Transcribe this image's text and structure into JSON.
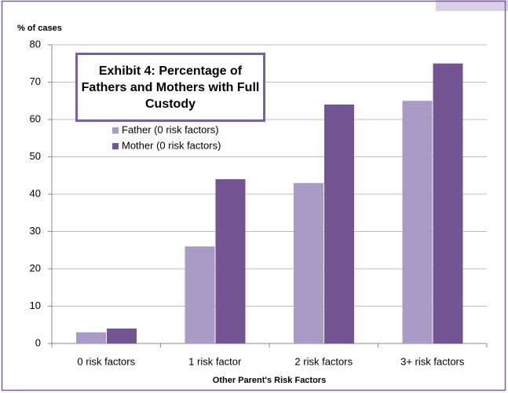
{
  "chart_data": {
    "type": "bar",
    "title": "Exhibit 4: Percentage of Fathers and Mothers with Full Custody",
    "y_label": "% of cases",
    "x_label": "Other Parent's Risk Factors",
    "categories": [
      "0 risk factors",
      "1 risk factor",
      "2 risk factors",
      "3+ risk factors"
    ],
    "series": [
      {
        "name": "Father (0 risk factors)",
        "color": "#a99bc5",
        "values": [
          3,
          26,
          43,
          65
        ]
      },
      {
        "name": "Mother (0 risk factors)",
        "color": "#725592",
        "values": [
          4,
          44,
          64,
          75
        ]
      }
    ],
    "ylim": [
      0,
      80
    ],
    "yticks": [
      0,
      10,
      20,
      30,
      40,
      50,
      60,
      70,
      80
    ],
    "grid": true
  }
}
